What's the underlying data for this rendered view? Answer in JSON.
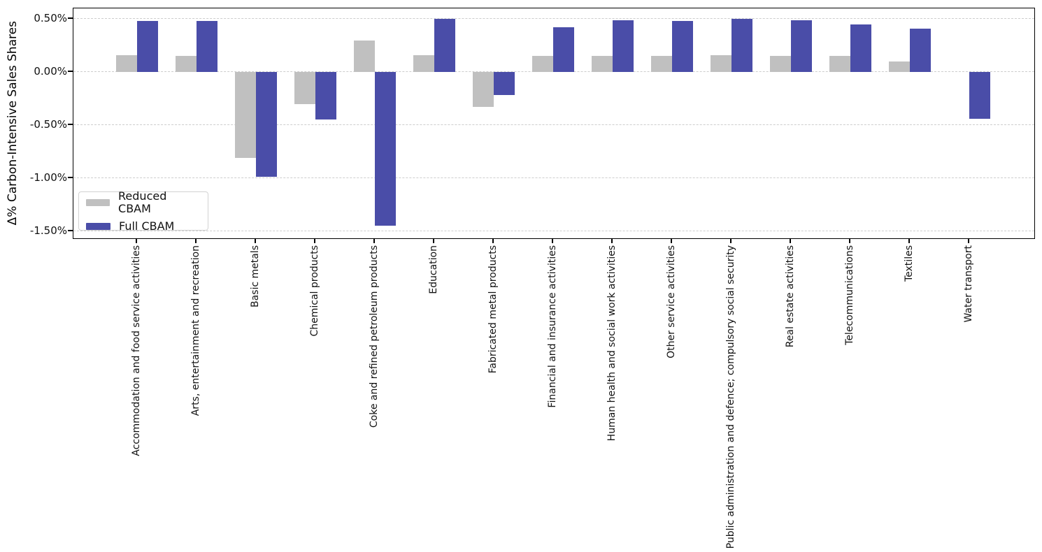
{
  "chart_data": {
    "type": "bar",
    "title": "",
    "xlabel": "",
    "ylabel": "Δ% Carbon-Intensive Sales Shares",
    "categories": [
      "Accommodation and food service activities",
      "Arts, entertainment and recreation",
      "Basic metals",
      "Chemical products",
      "Coke and refined petroleum products",
      "Education",
      "Fabricated metal products",
      "Financial and insurance activities",
      "Human health and social work activities",
      "Other service activities",
      "Public administration and defence; compulsory social security",
      "Real estate activities",
      "Telecommunications",
      "Textiles",
      "Water transport"
    ],
    "series": [
      {
        "name": "Reduced CBAM",
        "color": "#c0c0c0",
        "values": [
          0.16,
          0.15,
          -0.81,
          -0.3,
          0.3,
          0.16,
          -0.33,
          0.15,
          0.15,
          0.15,
          0.16,
          0.15,
          0.15,
          0.1,
          0.0
        ]
      },
      {
        "name": "Full CBAM",
        "color": "#4a4da8",
        "values": [
          0.48,
          0.48,
          -0.99,
          -0.45,
          -1.45,
          0.5,
          -0.22,
          0.42,
          0.49,
          0.48,
          0.5,
          0.49,
          0.45,
          0.41,
          -0.44
        ]
      }
    ],
    "y_ticks": [
      {
        "value": 0.5,
        "label": "0.50%"
      },
      {
        "value": 0.0,
        "label": "0.00%"
      },
      {
        "value": -0.5,
        "label": "-0.50%"
      },
      {
        "value": -1.0,
        "label": "-1.00%"
      },
      {
        "value": -1.5,
        "label": "-1.50%"
      }
    ],
    "ylim": [
      -1.58,
      0.6
    ],
    "unit": "%",
    "grid": true,
    "grid_style": "dashed",
    "legend_position": "lower left"
  }
}
